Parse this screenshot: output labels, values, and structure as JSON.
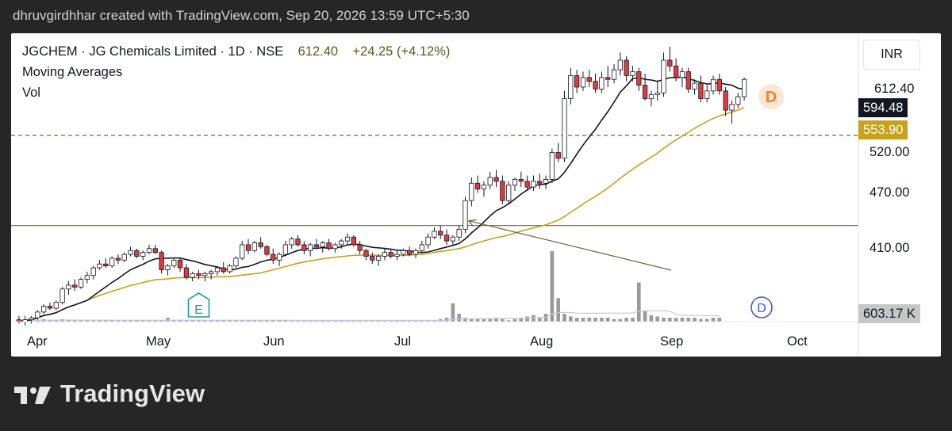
{
  "credit": "dhruvgirdhhar created with TradingView.com, Sep 20, 2026 13:59 UTC+5:30",
  "brand": "TradingView",
  "colors": {
    "up": "#ffffff",
    "down": "#e03a3e",
    "ma_fast": "#131722",
    "ma_slow": "#c7a21a",
    "hline": "#6b6b3a",
    "volume": "#9a9a9a",
    "dividend_marker": "#f0812b",
    "dividend_marker_vol": "#3b5bdb",
    "earnings_marker": "#1f9c8a"
  },
  "chart_data": {
    "type": "candlestick",
    "symbol": "JGCHEM",
    "name": "JG Chemicals Limited",
    "interval": "1D",
    "exchange": "NSE",
    "last_price": "612.40",
    "change": "+24.25",
    "change_pct": "(+4.12%)",
    "currency": "INR",
    "indicators": [
      "Moving Averages",
      "Vol"
    ],
    "ma_fast_value": "594.48",
    "ma_slow_value": "553.90",
    "volume_value": "603.17 K",
    "y_ticks": [
      "612.40",
      "520.00",
      "470.00",
      "410.00"
    ],
    "y_range": [
      360,
      660
    ],
    "x_ticks": [
      "Apr",
      "May",
      "Jun",
      "Jul",
      "Aug",
      "Sep",
      "Oct"
    ],
    "horizontal_levels": [
      {
        "price": 460,
        "style": "solid"
      },
      {
        "price": 553.9,
        "style": "dashed"
      }
    ],
    "markers": [
      {
        "label": "E",
        "type": "earnings",
        "month": "May"
      },
      {
        "label": "D",
        "type": "dividend",
        "month": "Sep"
      },
      {
        "label": "D",
        "type": "dividend",
        "month": "Sep"
      }
    ],
    "candles_ohlc_approx": [
      [
        362,
        366,
        358,
        360
      ],
      [
        360,
        366,
        356,
        362
      ],
      [
        362,
        366,
        358,
        364
      ],
      [
        364,
        372,
        362,
        370
      ],
      [
        370,
        378,
        368,
        376
      ],
      [
        376,
        380,
        372,
        374
      ],
      [
        374,
        382,
        372,
        380
      ],
      [
        380,
        396,
        378,
        394
      ],
      [
        394,
        402,
        388,
        398
      ],
      [
        398,
        404,
        392,
        396
      ],
      [
        396,
        406,
        394,
        404
      ],
      [
        404,
        412,
        400,
        408
      ],
      [
        408,
        418,
        404,
        416
      ],
      [
        416,
        424,
        414,
        420
      ],
      [
        420,
        426,
        416,
        418
      ],
      [
        418,
        428,
        416,
        426
      ],
      [
        426,
        430,
        420,
        424
      ],
      [
        424,
        432,
        422,
        430
      ],
      [
        430,
        438,
        428,
        434
      ],
      [
        434,
        436,
        426,
        428
      ],
      [
        428,
        434,
        424,
        432
      ],
      [
        432,
        440,
        430,
        436
      ],
      [
        436,
        440,
        430,
        432
      ],
      [
        432,
        434,
        410,
        414
      ],
      [
        414,
        420,
        408,
        418
      ],
      [
        418,
        426,
        416,
        424
      ],
      [
        424,
        426,
        412,
        416
      ],
      [
        416,
        420,
        404,
        406
      ],
      [
        406,
        412,
        402,
        410
      ],
      [
        410,
        414,
        404,
        408
      ],
      [
        408,
        412,
        402,
        410
      ],
      [
        410,
        414,
        404,
        412
      ],
      [
        412,
        418,
        408,
        416
      ],
      [
        416,
        422,
        410,
        412
      ],
      [
        412,
        420,
        410,
        418
      ],
      [
        418,
        428,
        416,
        426
      ],
      [
        426,
        444,
        424,
        440
      ],
      [
        440,
        446,
        430,
        434
      ],
      [
        434,
        444,
        432,
        442
      ],
      [
        442,
        448,
        436,
        438
      ],
      [
        438,
        440,
        428,
        430
      ],
      [
        430,
        436,
        420,
        424
      ],
      [
        424,
        432,
        418,
        430
      ],
      [
        430,
        444,
        428,
        440
      ],
      [
        440,
        448,
        436,
        446
      ],
      [
        446,
        450,
        438,
        440
      ],
      [
        440,
        444,
        430,
        434
      ],
      [
        434,
        442,
        428,
        440
      ],
      [
        440,
        446,
        436,
        438
      ],
      [
        438,
        444,
        432,
        442
      ],
      [
        442,
        446,
        434,
        436
      ],
      [
        436,
        442,
        432,
        440
      ],
      [
        440,
        446,
        436,
        444
      ],
      [
        444,
        452,
        440,
        448
      ],
      [
        448,
        450,
        438,
        440
      ],
      [
        440,
        444,
        430,
        434
      ],
      [
        434,
        436,
        424,
        428
      ],
      [
        428,
        432,
        420,
        424
      ],
      [
        424,
        430,
        418,
        428
      ],
      [
        428,
        436,
        424,
        432
      ],
      [
        432,
        436,
        426,
        428
      ],
      [
        428,
        434,
        424,
        430
      ],
      [
        430,
        436,
        428,
        434
      ],
      [
        434,
        438,
        428,
        430
      ],
      [
        430,
        436,
        426,
        434
      ],
      [
        434,
        444,
        432,
        440
      ],
      [
        440,
        452,
        436,
        448
      ],
      [
        448,
        458,
        446,
        454
      ],
      [
        454,
        460,
        446,
        450
      ],
      [
        450,
        456,
        440,
        444
      ],
      [
        444,
        450,
        440,
        448
      ],
      [
        448,
        460,
        444,
        456
      ],
      [
        456,
        490,
        452,
        486
      ],
      [
        486,
        510,
        480,
        504
      ],
      [
        504,
        512,
        494,
        498
      ],
      [
        498,
        506,
        490,
        502
      ],
      [
        502,
        516,
        498,
        510
      ],
      [
        510,
        518,
        500,
        506
      ],
      [
        506,
        512,
        482,
        486
      ],
      [
        486,
        506,
        482,
        502
      ],
      [
        502,
        510,
        496,
        508
      ],
      [
        508,
        516,
        500,
        506
      ],
      [
        506,
        512,
        496,
        500
      ],
      [
        500,
        512,
        496,
        506
      ],
      [
        506,
        514,
        498,
        504
      ],
      [
        504,
        512,
        498,
        508
      ],
      [
        508,
        540,
        504,
        536
      ],
      [
        536,
        546,
        526,
        530
      ],
      [
        530,
        600,
        526,
        592
      ],
      [
        592,
        624,
        586,
        616
      ],
      [
        616,
        622,
        598,
        604
      ],
      [
        604,
        620,
        600,
        614
      ],
      [
        614,
        622,
        604,
        610
      ],
      [
        610,
        618,
        598,
        602
      ],
      [
        602,
        620,
        598,
        614
      ],
      [
        614,
        626,
        604,
        612
      ],
      [
        612,
        628,
        608,
        622
      ],
      [
        622,
        640,
        616,
        632
      ],
      [
        632,
        636,
        610,
        616
      ],
      [
        616,
        626,
        610,
        620
      ],
      [
        620,
        624,
        600,
        606
      ],
      [
        606,
        618,
        590,
        592
      ],
      [
        592,
        600,
        584,
        596
      ],
      [
        596,
        610,
        590,
        598
      ],
      [
        598,
        640,
        594,
        632
      ],
      [
        632,
        646,
        620,
        626
      ],
      [
        626,
        634,
        610,
        614
      ],
      [
        614,
        624,
        604,
        620
      ],
      [
        620,
        624,
        598,
        602
      ],
      [
        602,
        612,
        596,
        608
      ],
      [
        608,
        616,
        588,
        592
      ],
      [
        592,
        606,
        588,
        600
      ],
      [
        600,
        616,
        596,
        612
      ],
      [
        612,
        618,
        596,
        600
      ],
      [
        600,
        604,
        574,
        580
      ],
      [
        580,
        590,
        566,
        586
      ],
      [
        586,
        598,
        582,
        594
      ],
      [
        594,
        614,
        590,
        612
      ]
    ],
    "volume_approx": [
      1,
      1,
      1,
      1,
      2,
      1,
      1,
      2,
      1,
      1,
      1,
      1,
      1,
      1,
      1,
      1,
      1,
      1,
      1,
      1,
      1,
      1,
      1,
      1,
      3,
      1,
      1,
      1,
      1,
      1,
      1,
      1,
      1,
      1,
      1,
      1,
      1,
      1,
      1,
      1,
      1,
      1,
      1,
      1,
      1,
      1,
      1,
      1,
      1,
      1,
      1,
      1,
      1,
      1,
      1,
      1,
      1,
      1,
      1,
      1,
      1,
      1,
      1,
      1,
      1,
      1,
      1,
      1,
      2,
      3,
      14,
      6,
      3,
      2,
      2,
      2,
      2,
      3,
      2,
      1,
      2,
      3,
      4,
      5,
      3,
      6,
      54,
      18,
      6,
      4,
      3,
      3,
      3,
      3,
      3,
      3,
      2,
      2,
      3,
      3,
      30,
      8,
      5,
      4,
      3,
      3,
      3,
      3,
      3,
      3,
      2,
      2,
      3,
      3
    ]
  }
}
